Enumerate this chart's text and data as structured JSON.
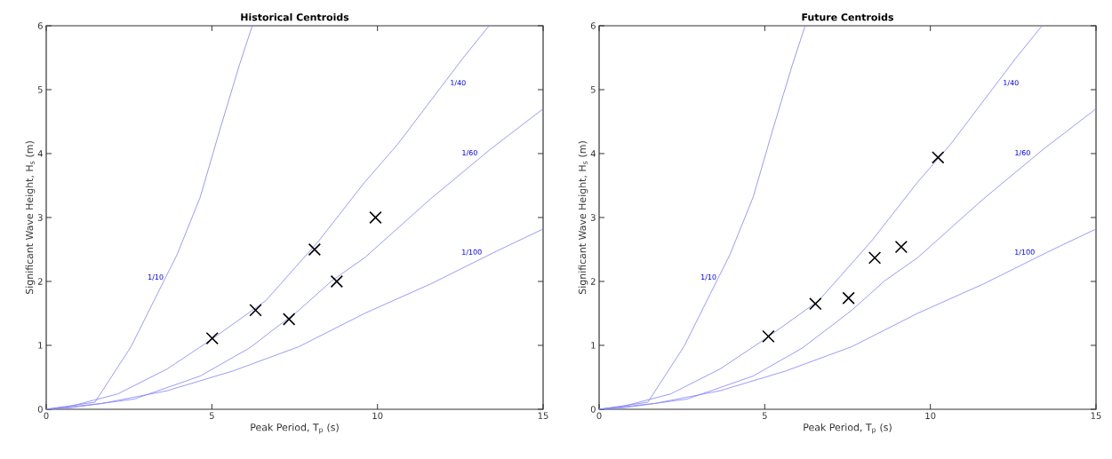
{
  "chart_data": [
    {
      "type": "scatter",
      "title": "Historical Centroids",
      "xlabel": "Peak Period,  T$_{p}$ (s)",
      "ylabel": "Significant Wave Height,  H$_{s}$ (m)",
      "xlim": [
        0,
        15
      ],
      "ylim": [
        0,
        6
      ],
      "xticks": [
        0,
        5,
        10,
        15
      ],
      "yticks": [
        0,
        1,
        2,
        3,
        4,
        5,
        6
      ],
      "series": [
        {
          "type": "line",
          "name": "1/10",
          "color": "#8080ff",
          "x": [
            0,
            1.47,
            2.56,
            3.36,
            3.95,
            4.65,
            5.24,
            5.84,
            6.22
          ],
          "values": [
            0,
            0.11,
            0.98,
            1.81,
            2.42,
            3.32,
            4.37,
            5.4,
            6.0
          ]
        },
        {
          "type": "line",
          "name": "1/40",
          "color": "#8080ff",
          "x": [
            0,
            0.68,
            2.16,
            3.65,
            5.04,
            6.63,
            8.22,
            9.61,
            10.6,
            12.59,
            13.37
          ],
          "values": [
            0,
            0.04,
            0.24,
            0.63,
            1.11,
            1.7,
            2.63,
            3.55,
            4.14,
            5.5,
            6.0
          ]
        },
        {
          "type": "line",
          "name": "1/60",
          "color": "#8080ff",
          "x": [
            0,
            0.68,
            2.66,
            4.65,
            6.14,
            7.63,
            8.62,
            9.61,
            11.6,
            13.39,
            15
          ],
          "values": [
            0,
            0.02,
            0.16,
            0.52,
            0.96,
            1.55,
            2.01,
            2.37,
            3.29,
            4.06,
            4.7
          ]
        },
        {
          "type": "line",
          "name": "1/100",
          "color": "#8080ff",
          "x": [
            0,
            1.67,
            3.65,
            5.64,
            7.63,
            9.61,
            11.6,
            13.58,
            15
          ],
          "values": [
            0,
            0.09,
            0.29,
            0.6,
            0.98,
            1.5,
            1.96,
            2.47,
            2.82
          ]
        },
        {
          "color": "#000000",
          "marker": "cross",
          "x": [
            5.01,
            6.32,
            7.33,
            8.1,
            8.77,
            9.94
          ],
          "values": [
            1.11,
            1.55,
            1.41,
            2.5,
            2.0,
            3.0
          ]
        }
      ]
    },
    {
      "type": "scatter",
      "title": "Future Centroids",
      "xlabel": "Peak Period,  T$_{p}$ (s)",
      "ylabel": "Significant Wave Height,  H$_{s}$ (m)",
      "xlim": [
        0,
        15
      ],
      "ylim": [
        0,
        6
      ],
      "xticks": [
        0,
        5,
        10,
        15
      ],
      "yticks": [
        0,
        1,
        2,
        3,
        4,
        5,
        6
      ],
      "series": [
        {
          "type": "line",
          "name": "1/10",
          "color": "#8080ff",
          "x": [
            0,
            1.47,
            2.56,
            3.36,
            3.95,
            4.65,
            5.24,
            5.84,
            6.22
          ],
          "values": [
            0,
            0.11,
            0.98,
            1.81,
            2.42,
            3.32,
            4.37,
            5.4,
            6.0
          ]
        },
        {
          "type": "line",
          "name": "1/40",
          "color": "#8080ff",
          "x": [
            0,
            0.68,
            2.16,
            3.65,
            5.04,
            6.63,
            8.22,
            9.61,
            10.6,
            12.59,
            13.37
          ],
          "values": [
            0,
            0.04,
            0.24,
            0.63,
            1.11,
            1.7,
            2.63,
            3.55,
            4.14,
            5.5,
            6.0
          ]
        },
        {
          "type": "line",
          "name": "1/60",
          "color": "#8080ff",
          "x": [
            0,
            0.68,
            2.66,
            4.65,
            6.14,
            7.63,
            8.62,
            9.61,
            11.6,
            13.39,
            15
          ],
          "values": [
            0,
            0.02,
            0.16,
            0.52,
            0.96,
            1.55,
            2.01,
            2.37,
            3.29,
            4.06,
            4.7
          ]
        },
        {
          "type": "line",
          "name": "1/100",
          "color": "#8080ff",
          "x": [
            0,
            1.67,
            3.65,
            5.64,
            7.63,
            9.61,
            11.6,
            13.58,
            15
          ],
          "values": [
            0,
            0.09,
            0.29,
            0.6,
            0.98,
            1.5,
            1.96,
            2.47,
            2.82
          ]
        },
        {
          "color": "#000000",
          "marker": "cross",
          "x": [
            5.11,
            6.53,
            7.53,
            8.32,
            9.12,
            10.23
          ],
          "values": [
            1.14,
            1.65,
            1.74,
            2.37,
            2.54,
            3.94
          ]
        }
      ]
    }
  ]
}
